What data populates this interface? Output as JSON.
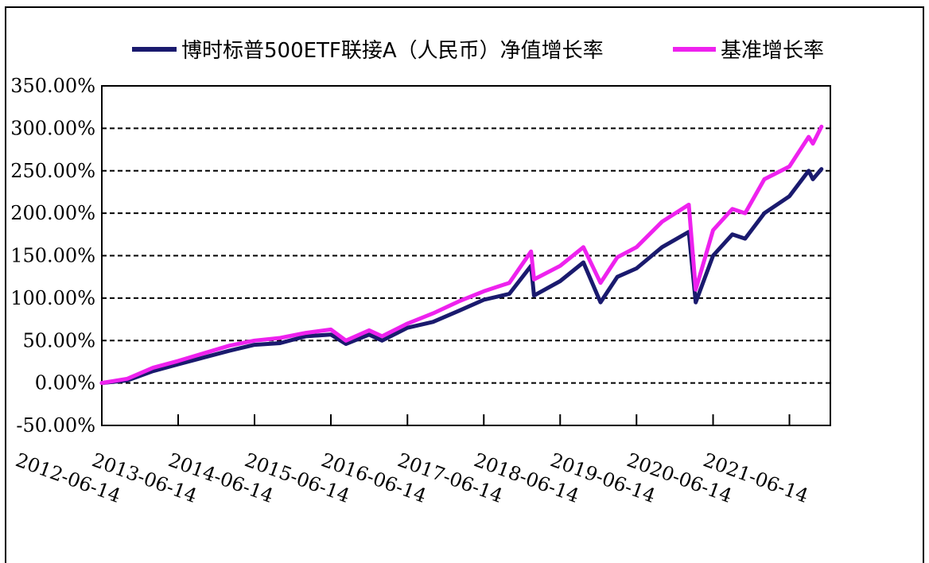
{
  "chart_data": {
    "type": "line",
    "title": "",
    "xlabel": "",
    "ylabel": "",
    "ylim": [
      -50,
      350
    ],
    "y_ticks": [
      "350.00%",
      "300.00%",
      "250.00%",
      "200.00%",
      "150.00%",
      "100.00%",
      "50.00%",
      "0.00%",
      "-50.00%"
    ],
    "y_tick_values": [
      350,
      300,
      250,
      200,
      150,
      100,
      50,
      0,
      -50
    ],
    "x_ticks": [
      "2012-06-14",
      "2013-06-14",
      "2014-06-14",
      "2015-06-14",
      "2016-06-14",
      "2017-06-14",
      "2018-06-14",
      "2019-06-14",
      "2020-06-14",
      "2021-06-14"
    ],
    "grid": "horizontal dashed",
    "legend_position": "top",
    "series": [
      {
        "name": "博时标普500ETF联接A（人民币）净值增长率",
        "color": "#1a1a6e",
        "x": [
          "2012-06-14",
          "2012-10-14",
          "2013-02-14",
          "2013-06-14",
          "2013-10-14",
          "2014-02-14",
          "2014-06-14",
          "2014-10-14",
          "2015-02-14",
          "2015-06-14",
          "2015-08-25",
          "2015-12-14",
          "2016-02-14",
          "2016-06-14",
          "2016-10-14",
          "2017-02-14",
          "2017-06-14",
          "2017-10-14",
          "2018-01-26",
          "2018-02-09",
          "2018-06-14",
          "2018-10-03",
          "2018-12-24",
          "2019-03-14",
          "2019-06-14",
          "2019-10-14",
          "2020-02-19",
          "2020-03-23",
          "2020-06-14",
          "2020-09-14",
          "2020-11-14",
          "2021-02-14",
          "2021-06-14",
          "2021-09-14",
          "2021-10-04",
          "2021-11-14"
        ],
        "values": [
          0,
          3,
          14,
          22,
          30,
          38,
          45,
          47,
          55,
          57,
          46,
          57,
          50,
          65,
          72,
          85,
          98,
          105,
          138,
          103,
          120,
          142,
          95,
          125,
          135,
          160,
          178,
          95,
          150,
          175,
          170,
          200,
          220,
          250,
          240,
          252
        ]
      },
      {
        "name": "基准增长率",
        "color": "#ee22ee",
        "x": [
          "2012-06-14",
          "2012-10-14",
          "2013-02-14",
          "2013-06-14",
          "2013-10-14",
          "2014-02-14",
          "2014-06-14",
          "2014-10-14",
          "2015-02-14",
          "2015-06-14",
          "2015-08-25",
          "2015-12-14",
          "2016-02-14",
          "2016-06-14",
          "2016-10-14",
          "2017-02-14",
          "2017-06-14",
          "2017-10-14",
          "2018-01-26",
          "2018-02-09",
          "2018-06-14",
          "2018-10-03",
          "2018-12-24",
          "2019-03-14",
          "2019-06-14",
          "2019-10-14",
          "2020-02-19",
          "2020-03-23",
          "2020-06-14",
          "2020-09-14",
          "2020-11-14",
          "2021-02-14",
          "2021-06-14",
          "2021-09-14",
          "2021-10-04",
          "2021-11-14"
        ],
        "values": [
          0,
          5,
          18,
          26,
          35,
          44,
          50,
          53,
          59,
          63,
          50,
          62,
          55,
          70,
          82,
          96,
          108,
          118,
          155,
          122,
          138,
          160,
          118,
          148,
          160,
          190,
          210,
          110,
          180,
          205,
          200,
          240,
          255,
          290,
          282,
          302
        ]
      }
    ]
  }
}
